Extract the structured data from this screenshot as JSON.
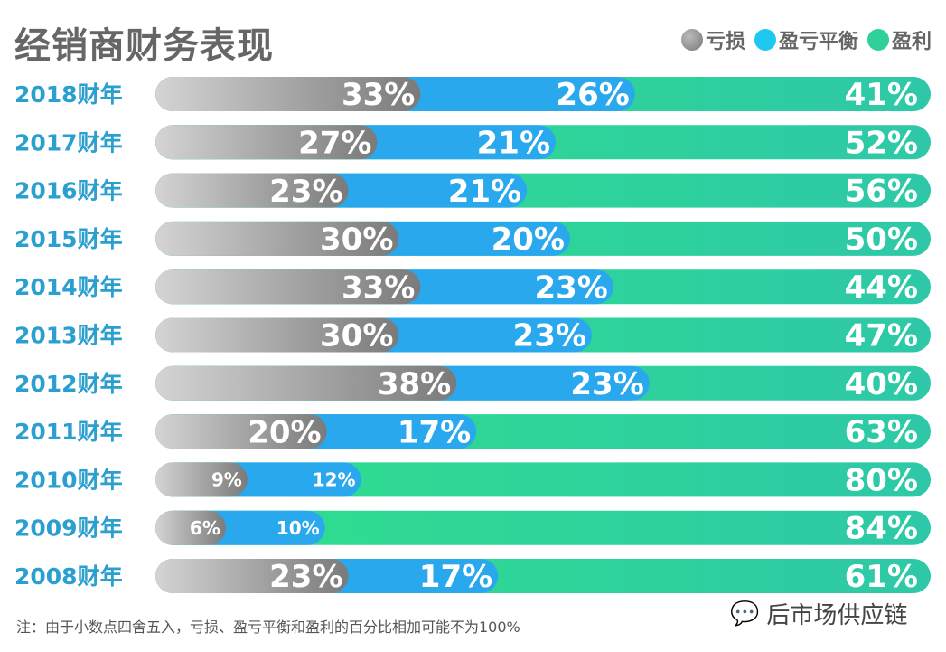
{
  "title": "经销商财务表现",
  "legend": [
    {
      "label": "亏损",
      "color": "#8a8a8a"
    },
    {
      "label": "盈亏平衡",
      "color": "#1ec8f0"
    },
    {
      "label": "盈利",
      "color": "#2fd09a"
    }
  ],
  "note": "注：由于小数点四舍五入，亏损、盈亏平衡和盈利的百分比相加可能不为100%",
  "watermark": "后市场供应链",
  "chart_data": {
    "type": "bar",
    "stacked": true,
    "orientation": "horizontal",
    "categories": [
      "2018财年",
      "2017财年",
      "2016财年",
      "2015财年",
      "2014财年",
      "2013财年",
      "2012财年",
      "2011财年",
      "2010财年",
      "2009财年",
      "2008财年"
    ],
    "series": [
      {
        "name": "亏损",
        "color": "#8a8a8a",
        "values": [
          33,
          27,
          23,
          30,
          33,
          30,
          38,
          20,
          9,
          6,
          23
        ]
      },
      {
        "name": "盈亏平衡",
        "color": "#2aa8ee",
        "values": [
          26,
          21,
          21,
          20,
          23,
          23,
          23,
          17,
          12,
          10,
          17
        ]
      },
      {
        "name": "盈利",
        "color": "#2fd09a",
        "values": [
          41,
          52,
          56,
          50,
          44,
          47,
          40,
          63,
          80,
          84,
          61
        ]
      }
    ],
    "unit": "%",
    "xlim": [
      0,
      100
    ]
  }
}
